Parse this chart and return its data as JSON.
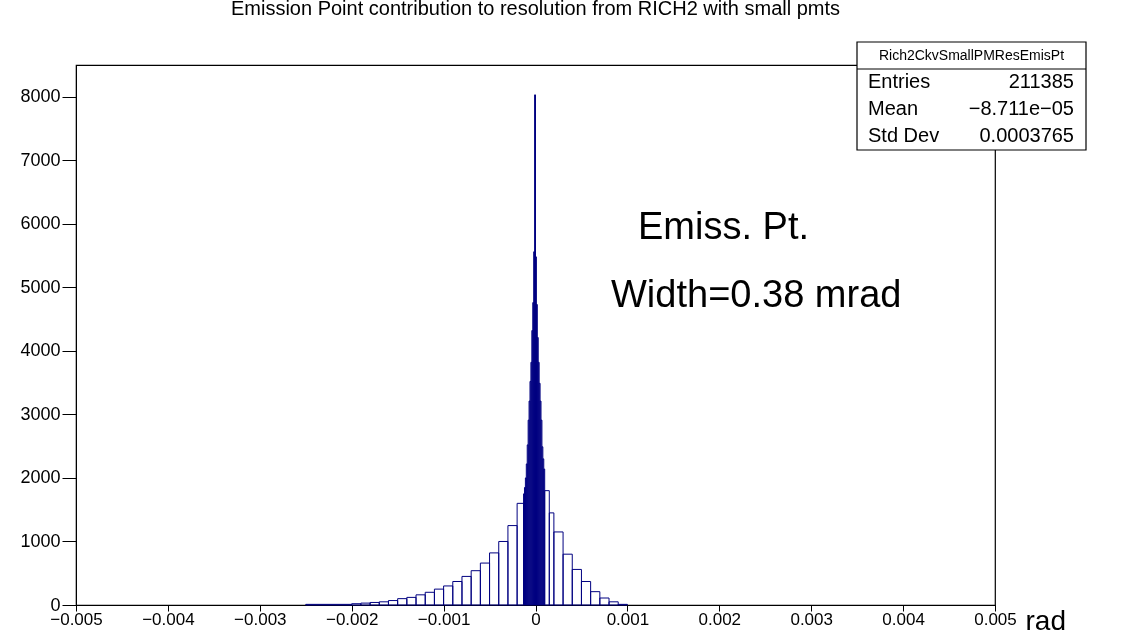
{
  "chart_data": {
    "type": "histogram",
    "title": "Emission Point contribution to resolution from RICH2 with small pmts",
    "xlabel": "rad",
    "bins": [
      -0.0025,
      -0.002,
      -0.0019,
      -0.0018,
      -0.0017,
      -0.0016,
      -0.0015,
      -0.0014,
      -0.0013,
      -0.0012,
      -0.0011,
      -0.001,
      -0.0009,
      -0.0008,
      -0.0007,
      -0.0006,
      -0.0005,
      -0.0004,
      -0.0003,
      -0.0002,
      -0.00013,
      -0.00012,
      -0.00011,
      -0.0001,
      -9e-05,
      -8e-05,
      -7e-05,
      -6e-05,
      -5e-05,
      -4e-05,
      -3e-05,
      -2e-05,
      -1e-05,
      0,
      1e-05,
      2e-05,
      3e-05,
      4e-05,
      5e-05,
      6e-05,
      7e-05,
      8e-05,
      9e-05,
      0.0001,
      0.00015,
      0.0002,
      0.0003,
      0.0004,
      0.0005,
      0.0006,
      0.0007,
      0.0008,
      0.0009,
      0.001
    ],
    "values": [
      10,
      20,
      30,
      40,
      50,
      70,
      100,
      120,
      160,
      200,
      250,
      300,
      370,
      450,
      540,
      660,
      820,
      1000,
      1250,
      1600,
      1750,
      1850,
      2000,
      2220,
      2520,
      2910,
      3210,
      3520,
      3820,
      4320,
      4760,
      5560,
      8030,
      5480,
      4730,
      4210,
      3820,
      3490,
      3210,
      2910,
      2490,
      2300,
      2140,
      1800,
      1450,
      1150,
      800,
      560,
      370,
      210,
      110,
      50,
      10
    ],
    "color": "#000080",
    "xlim": [
      -0.005,
      0.005
    ],
    "xticks": [
      -0.005,
      -0.004,
      -0.003,
      -0.002,
      -0.001,
      0,
      0.001,
      0.002,
      0.003,
      0.004,
      0.005
    ],
    "ylim": [
      0,
      8500
    ],
    "yticks": [
      0,
      1000,
      2000,
      3000,
      4000,
      5000,
      6000,
      7000,
      8000
    ],
    "grid": false,
    "annotations": [
      "Rich2CkvSmallPMResEmisPt",
      "Entries",
      "211385",
      "Mean",
      "−8.711e−05",
      "Std Dev",
      "0.0003765",
      "Emiss. Pt.",
      "Width=0.38 mrad"
    ]
  }
}
